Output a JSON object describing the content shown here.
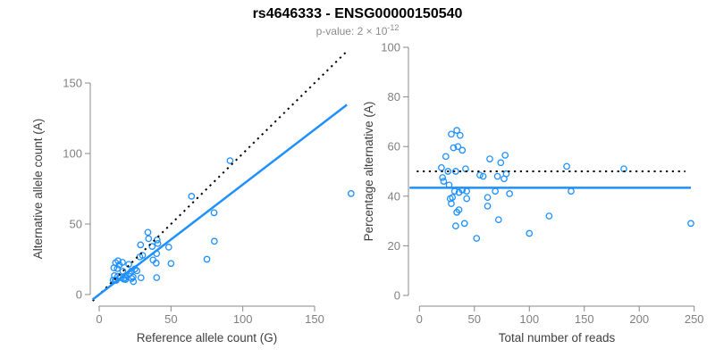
{
  "header": {
    "title": "rs4646333 - ENSG00000150540",
    "pvalue_prefix": "p-value: ",
    "pvalue_mantissa": "2",
    "pvalue_times": " × ",
    "pvalue_base": "10",
    "pvalue_exponent": "-12"
  },
  "colors": {
    "accent_blue": "#1E90FF",
    "line_black": "#000000",
    "axis_gray": "#888888",
    "tick_label_gray": "#808080",
    "axis_title_gray": "#404040",
    "subtitle_gray": "#8c8c8c",
    "background": "#ffffff"
  },
  "chart_data": [
    {
      "type": "scatter",
      "panel": "left",
      "xlabel": "Reference allele count (G)",
      "ylabel": "Alternative allele count (A)",
      "xticks": [
        0,
        50,
        100,
        150
      ],
      "yticks": [
        0,
        50,
        100,
        150
      ],
      "xlim": [
        0,
        175
      ],
      "ylim": [
        0,
        175
      ],
      "grid": false,
      "legend": "none",
      "marker": "open-circle",
      "lines": [
        {
          "name": "identity-line",
          "style": "dotted",
          "color": "#000000",
          "slope": 1,
          "intercept": 0,
          "x_range": [
            -4.5,
            172.5
          ]
        },
        {
          "name": "fit-line",
          "style": "solid",
          "color": "#1E90FF",
          "slope": 0.78,
          "intercept": 0,
          "x_range": [
            -4.5,
            172.5
          ]
        }
      ],
      "points": [
        [
          10.6,
          13.4
        ],
        [
          10.2,
          18.9
        ],
        [
          11.4,
          22.6
        ],
        [
          13.1,
          23.9
        ],
        [
          12.6,
          18.4
        ],
        [
          14,
          21
        ],
        [
          16.2,
          22.8
        ],
        [
          9.7,
          10.3
        ],
        [
          13,
          13
        ],
        [
          16.5,
          16.5
        ],
        [
          20.6,
          21.4
        ],
        [
          11,
          10
        ],
        [
          11.9,
          10.1
        ],
        [
          15,
          12
        ],
        [
          18.6,
          13.4
        ],
        [
          21.1,
          14.9
        ],
        [
          22.4,
          16.6
        ],
        [
          24.9,
          18.1
        ],
        [
          18.2,
          11.9
        ],
        [
          17.1,
          10.9
        ],
        [
          26.2,
          16.8
        ],
        [
          18.3,
          10.7
        ],
        [
          22.6,
          11.4
        ],
        [
          23.6,
          12.4
        ],
        [
          23.8,
          9.2
        ],
        [
          29.1,
          11.9
        ],
        [
          40,
          12
        ],
        [
          28.3,
          26.7
        ],
        [
          30.2,
          27.8
        ],
        [
          28.8,
          35.2
        ],
        [
          34.4,
          39.6
        ],
        [
          33.9,
          44.1
        ],
        [
          36.9,
          34.1
        ],
        [
          40.8,
          36.2
        ],
        [
          40.3,
          38.7
        ],
        [
          40,
          29
        ],
        [
          48.4,
          33.6
        ],
        [
          37.5,
          24.5
        ],
        [
          39.7,
          22.3
        ],
        [
          50,
          22
        ],
        [
          75,
          25
        ],
        [
          80.2,
          37.8
        ],
        [
          64.3,
          69.7
        ],
        [
          80,
          58
        ],
        [
          91.1,
          94.9
        ],
        [
          175.4,
          71.6
        ]
      ]
    },
    {
      "type": "scatter",
      "panel": "right",
      "xlabel": "Total number of reads",
      "ylabel": "Percentage alternative (A)",
      "xticks": [
        0,
        50,
        100,
        150,
        200,
        250
      ],
      "yticks": [
        0,
        20,
        40,
        60,
        80,
        100
      ],
      "xlim": [
        0,
        250
      ],
      "ylim": [
        0,
        100
      ],
      "grid": false,
      "legend": "none",
      "marker": "open-circle",
      "lines": [
        {
          "name": "null-50-line",
          "style": "dotted",
          "color": "#000000",
          "y": 50,
          "x_range": [
            -2.5,
            242
          ]
        },
        {
          "name": "mean-line",
          "style": "solid",
          "color": "#1E90FF",
          "y": 43.4,
          "x_range": [
            -9,
            247
          ]
        }
      ],
      "points": [
        [
          24,
          56
        ],
        [
          29,
          65
        ],
        [
          34,
          66.5
        ],
        [
          37,
          64.5
        ],
        [
          31,
          59.5
        ],
        [
          35,
          60
        ],
        [
          39,
          58.5
        ],
        [
          20,
          51.5
        ],
        [
          26,
          50
        ],
        [
          33,
          50
        ],
        [
          42,
          51
        ],
        [
          21,
          47.5
        ],
        [
          22,
          46
        ],
        [
          27,
          44.5
        ],
        [
          32,
          42
        ],
        [
          36,
          41.5
        ],
        [
          39,
          42.5
        ],
        [
          43,
          42
        ],
        [
          30,
          39.5
        ],
        [
          28,
          39
        ],
        [
          43,
          39
        ],
        [
          29,
          37
        ],
        [
          34,
          33.5
        ],
        [
          36,
          34.5
        ],
        [
          33,
          28
        ],
        [
          41,
          29
        ],
        [
          52,
          23
        ],
        [
          55,
          48.5
        ],
        [
          58,
          48
        ],
        [
          64,
          55
        ],
        [
          74,
          53.5
        ],
        [
          78,
          56.5
        ],
        [
          71,
          48
        ],
        [
          77,
          47
        ],
        [
          79,
          49
        ],
        [
          69,
          42
        ],
        [
          82,
          41
        ],
        [
          62,
          39.5
        ],
        [
          62,
          36
        ],
        [
          72,
          30.5
        ],
        [
          100,
          25
        ],
        [
          118,
          32
        ],
        [
          134,
          52
        ],
        [
          138,
          42
        ],
        [
          186,
          51
        ],
        [
          247,
          29
        ]
      ]
    }
  ]
}
